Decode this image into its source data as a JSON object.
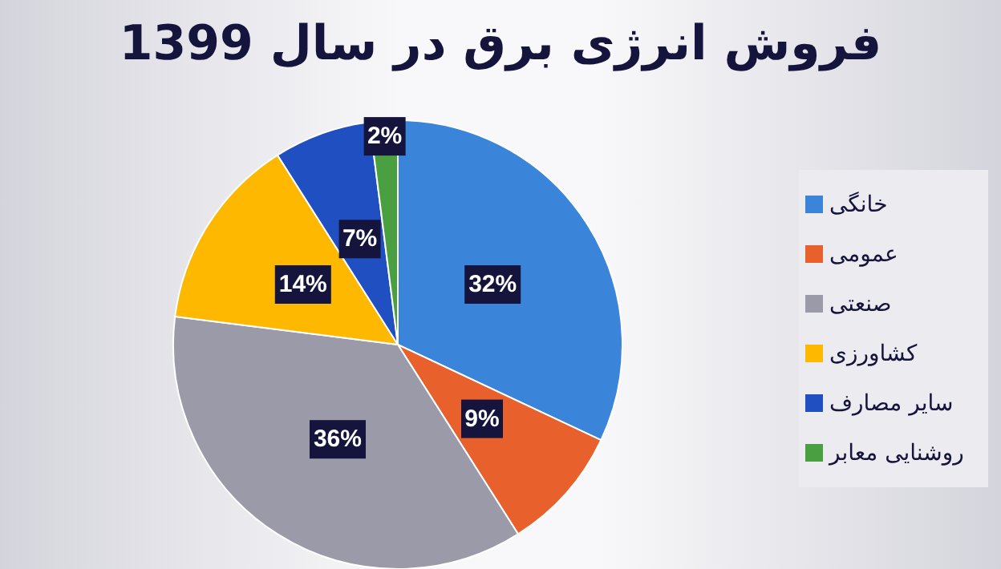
{
  "chart_data": {
    "type": "pie",
    "title": "فروش انرژی برق در سال 1399",
    "categories": [
      "خانگی",
      "عمومی",
      "صنعتی",
      "کشاورزی",
      "سایر مصارف",
      "روشنایی معابر"
    ],
    "values": [
      32,
      9,
      36,
      14,
      7,
      2
    ],
    "colors": [
      "#3a85d9",
      "#e8602c",
      "#9a9aa8",
      "#ffb800",
      "#1f4fc0",
      "#4aa040"
    ],
    "value_labels": [
      "32%",
      "9%",
      "36%",
      "14%",
      "7%",
      "2%"
    ],
    "legend": "right"
  }
}
